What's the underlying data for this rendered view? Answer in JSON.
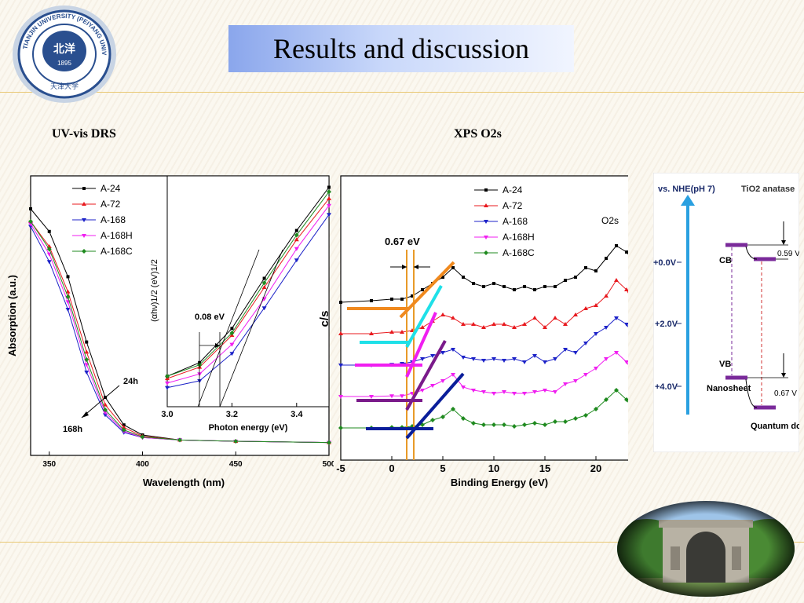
{
  "slide": {
    "title": "Results and discussion",
    "left_label": "UV-vis DRS",
    "right_label": "XPS O2s",
    "seal_text": "TIANJIN UNIVERSITY (PEIYANG UNIVERSITY) 1895"
  },
  "colors": {
    "A-24": "#000000",
    "A-72": "#e8191e",
    "A-168": "#1c22c8",
    "A-168H": "#f01ef0",
    "A-168C": "#1f8a1f",
    "title_gradient_start": "#8aa6ec",
    "rule": "#e8c874"
  },
  "chart_data": [
    {
      "type": "line",
      "xlabel": "Wavelength (nm)",
      "ylabel": "Absorption (a.u.)",
      "xlim": [
        340,
        500
      ],
      "xticks": [
        "350",
        "400",
        "450",
        "500"
      ],
      "legend_position": "top-left",
      "annotations": [
        "24h",
        "168h"
      ],
      "series": [
        {
          "name": "A-24",
          "x": [
            340,
            350,
            360,
            370,
            380,
            390,
            400,
            420,
            450,
            500
          ],
          "y": [
            0.95,
            0.86,
            0.68,
            0.42,
            0.2,
            0.09,
            0.05,
            0.03,
            0.025,
            0.02
          ]
        },
        {
          "name": "A-72",
          "x": [
            340,
            350,
            360,
            370,
            380,
            390,
            400,
            420,
            450,
            500
          ],
          "y": [
            0.9,
            0.8,
            0.62,
            0.38,
            0.17,
            0.08,
            0.045,
            0.03,
            0.025,
            0.02
          ]
        },
        {
          "name": "A-168",
          "x": [
            340,
            350,
            360,
            370,
            380,
            390,
            400,
            420,
            450,
            500
          ],
          "y": [
            0.88,
            0.74,
            0.55,
            0.3,
            0.13,
            0.06,
            0.04,
            0.03,
            0.025,
            0.02
          ]
        },
        {
          "name": "A-168H",
          "x": [
            340,
            350,
            360,
            370,
            380,
            390,
            400,
            420,
            450,
            500
          ],
          "y": [
            0.89,
            0.77,
            0.58,
            0.33,
            0.14,
            0.065,
            0.04,
            0.03,
            0.025,
            0.02
          ]
        },
        {
          "name": "A-168C",
          "x": [
            340,
            350,
            360,
            370,
            380,
            390,
            400,
            420,
            450,
            500
          ],
          "y": [
            0.9,
            0.79,
            0.6,
            0.35,
            0.15,
            0.07,
            0.042,
            0.03,
            0.025,
            0.02
          ]
        }
      ]
    },
    {
      "type": "line",
      "xlabel": "Photon energy (eV)",
      "ylabel": "(αhν)1/2 (eV)1/2",
      "xlim": [
        3.0,
        3.5
      ],
      "xticks": [
        "3.0",
        "3.2",
        "3.4"
      ],
      "annotations": [
        "0.08 eV"
      ],
      "series": [
        {
          "name": "A-24",
          "x": [
            3.0,
            3.1,
            3.2,
            3.3,
            3.4,
            3.5
          ],
          "y": [
            0.12,
            0.18,
            0.33,
            0.55,
            0.76,
            0.95
          ]
        },
        {
          "name": "A-72",
          "x": [
            3.0,
            3.1,
            3.2,
            3.3,
            3.4,
            3.5
          ],
          "y": [
            0.11,
            0.16,
            0.3,
            0.51,
            0.72,
            0.9
          ]
        },
        {
          "name": "A-168",
          "x": [
            3.0,
            3.1,
            3.2,
            3.3,
            3.4,
            3.5
          ],
          "y": [
            0.07,
            0.1,
            0.22,
            0.42,
            0.63,
            0.83
          ]
        },
        {
          "name": "A-168H",
          "x": [
            3.0,
            3.1,
            3.2,
            3.3,
            3.4,
            3.5
          ],
          "y": [
            0.09,
            0.13,
            0.26,
            0.46,
            0.68,
            0.87
          ]
        },
        {
          "name": "A-168C",
          "x": [
            3.0,
            3.1,
            3.2,
            3.3,
            3.4,
            3.5
          ],
          "y": [
            0.12,
            0.17,
            0.31,
            0.53,
            0.74,
            0.93
          ]
        }
      ]
    },
    {
      "type": "line",
      "xlabel": "Binding Energy (eV)",
      "ylabel": "c/s",
      "xlim": [
        -5,
        25
      ],
      "xticks": [
        "-5",
        "0",
        "5",
        "10",
        "15",
        "20",
        "25"
      ],
      "legend_position": "top-right",
      "annotations": [
        "0.67 eV",
        "O2s"
      ],
      "series": [
        {
          "name": "A-24",
          "offset": 4,
          "x": [
            -5,
            -2,
            0,
            1,
            2,
            3,
            4,
            5,
            6,
            7,
            8,
            9,
            10,
            11,
            12,
            13,
            14,
            15,
            16,
            17,
            18,
            19,
            20,
            21,
            22,
            23,
            24,
            25
          ],
          "y": [
            0.2,
            0.25,
            0.3,
            0.3,
            0.4,
            0.6,
            0.8,
            1.0,
            1.3,
            1.0,
            0.8,
            0.7,
            0.8,
            0.7,
            0.6,
            0.7,
            0.6,
            0.7,
            0.7,
            0.9,
            1.0,
            1.3,
            1.2,
            1.6,
            2.0,
            1.8,
            1.4,
            1.2
          ]
        },
        {
          "name": "A-72",
          "offset": 3,
          "x": [
            -5,
            -2,
            0,
            1,
            2,
            3,
            4,
            5,
            6,
            7,
            8,
            9,
            10,
            11,
            12,
            13,
            14,
            15,
            16,
            17,
            18,
            19,
            20,
            21,
            22,
            23,
            24,
            25
          ],
          "y": [
            0.2,
            0.2,
            0.25,
            0.25,
            0.3,
            0.4,
            0.6,
            0.8,
            0.7,
            0.5,
            0.5,
            0.4,
            0.5,
            0.5,
            0.4,
            0.5,
            0.7,
            0.4,
            0.7,
            0.5,
            0.8,
            1.0,
            1.1,
            1.4,
            1.9,
            1.6,
            1.0,
            0.8
          ]
        },
        {
          "name": "A-168",
          "offset": 2,
          "x": [
            -5,
            -2,
            0,
            1,
            2,
            3,
            4,
            5,
            6,
            7,
            8,
            9,
            10,
            11,
            12,
            13,
            14,
            15,
            16,
            17,
            18,
            19,
            20,
            21,
            22,
            23,
            24,
            25
          ],
          "y": [
            0.2,
            0.2,
            0.22,
            0.25,
            0.3,
            0.4,
            0.5,
            0.6,
            0.7,
            0.45,
            0.4,
            0.35,
            0.4,
            0.35,
            0.4,
            0.3,
            0.5,
            0.3,
            0.4,
            0.7,
            0.6,
            0.9,
            1.2,
            1.4,
            1.7,
            1.5,
            1.0,
            0.8
          ]
        },
        {
          "name": "A-168H",
          "offset": 1,
          "x": [
            -5,
            -2,
            0,
            1,
            2,
            3,
            4,
            5,
            6,
            7,
            8,
            9,
            10,
            11,
            12,
            13,
            14,
            15,
            16,
            17,
            18,
            19,
            20,
            21,
            22,
            23,
            24,
            25
          ],
          "y": [
            0.2,
            0.2,
            0.22,
            0.22,
            0.3,
            0.4,
            0.55,
            0.7,
            0.9,
            0.5,
            0.4,
            0.35,
            0.3,
            0.35,
            0.3,
            0.3,
            0.35,
            0.4,
            0.35,
            0.6,
            0.7,
            0.9,
            1.1,
            1.4,
            1.6,
            1.3,
            0.8,
            0.7
          ]
        },
        {
          "name": "A-168C",
          "offset": 0,
          "x": [
            -5,
            -2,
            0,
            1,
            2,
            3,
            4,
            5,
            6,
            7,
            8,
            9,
            10,
            11,
            12,
            13,
            14,
            15,
            16,
            17,
            18,
            19,
            20,
            21,
            22,
            23,
            24,
            25
          ],
          "y": [
            0.2,
            0.2,
            0.22,
            0.22,
            0.25,
            0.3,
            0.45,
            0.55,
            0.8,
            0.5,
            0.35,
            0.3,
            0.3,
            0.3,
            0.25,
            0.3,
            0.35,
            0.3,
            0.4,
            0.4,
            0.5,
            0.6,
            0.8,
            1.1,
            1.4,
            1.1,
            0.6,
            0.5
          ]
        }
      ]
    }
  ],
  "band_diagram": {
    "axis_title": "vs. NHE(pH 7)",
    "header": "TiO2 anatase",
    "potentials": [
      "+0.0V",
      "+2.0V",
      "+4.0V"
    ],
    "labels": {
      "cb": "CB",
      "vb": "VB",
      "nanosheet": "Nanosheet",
      "quantum_dots": "Quantum dots"
    },
    "offsets": {
      "top": "0.59 V",
      "bottom": "0.67 V"
    }
  }
}
